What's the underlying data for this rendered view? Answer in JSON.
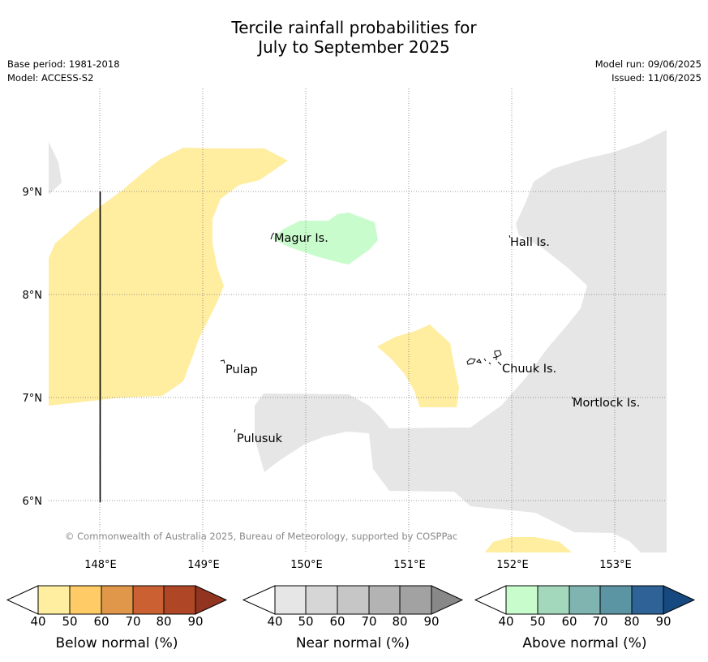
{
  "title": {
    "line1": "Tercile rainfall probabilities for",
    "line2": "July to September 2025"
  },
  "meta_left": {
    "base_period": "Base period: 1981-2018",
    "model": "Model: ACCESS-S2"
  },
  "meta_right": {
    "model_run": "Model run: 09/06/2025",
    "issued": "Issued: 11/06/2025"
  },
  "map": {
    "lat_labels": [
      "9°N",
      "8°N",
      "7°N",
      "6°N"
    ],
    "lon_labels": [
      "148°E",
      "149°E",
      "150°E",
      "151°E",
      "152°E",
      "153°E"
    ],
    "places": [
      "Magur Is.",
      "Hall Is.",
      "Pulap",
      "Chuuk Is.",
      "Mortlock Is.",
      "Pulusuk"
    ],
    "copyright": "© Commonwealth of Australia 2025, Bureau of Meteorology, supported by COSPPac"
  },
  "colors": {
    "below": [
      "#ffeda0",
      "#fecb66",
      "#e0974a",
      "#cb6132",
      "#af4726",
      "#913420"
    ],
    "near": [
      "#e6e6e6",
      "#d6d6d6",
      "#c6c6c6",
      "#b3b3b3",
      "#a2a2a2",
      "#888888"
    ],
    "above": [
      "#c9fccc",
      "#a3d8bd",
      "#7fb4b0",
      "#5b94a2",
      "#2f6397",
      "#16497f"
    ]
  },
  "colorbars": [
    {
      "title": "Below normal (%)",
      "ticks": [
        "40",
        "50",
        "60",
        "70",
        "80",
        "90"
      ]
    },
    {
      "title": "Near normal (%)",
      "ticks": [
        "40",
        "50",
        "60",
        "70",
        "80",
        "90"
      ]
    },
    {
      "title": "Above normal (%)",
      "ticks": [
        "40",
        "50",
        "60",
        "70",
        "80",
        "90"
      ]
    }
  ]
}
